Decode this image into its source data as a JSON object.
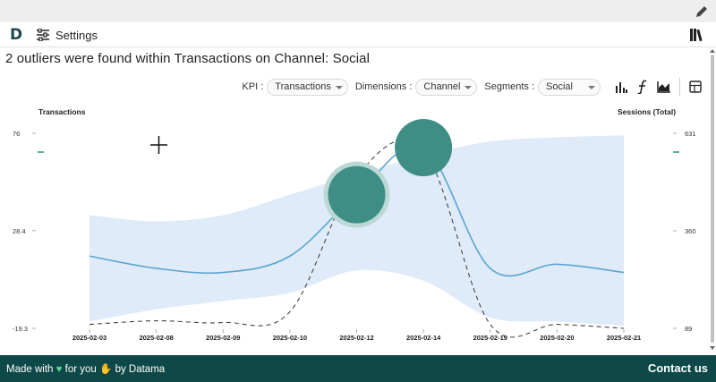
{
  "nav": {
    "settings_label": "Settings"
  },
  "headline": "2 outliers were found within Transactions on Channel: Social",
  "controls": {
    "kpi_label": "KPI :",
    "kpi_value": "Transactions",
    "dimensions_label": "Dimensions :",
    "dimensions_value": "Channel",
    "segments_label": "Segments :",
    "segments_value": "Social"
  },
  "icons": [
    "pencil-icon",
    "logo",
    "sliders-icon",
    "books-icon",
    "bar-chart-icon",
    "function-icon",
    "area-chart-icon",
    "table-icon"
  ],
  "footer": {
    "made_prefix": "Made with",
    "made_middle": "for you",
    "made_suffix": "by Datama",
    "contact": "Contact us"
  },
  "colors": {
    "accent": "#0f4848",
    "outlier": "#3e8e86",
    "line": "#5aa5d2",
    "band": "#dfebf8"
  },
  "chart_data": {
    "type": "line",
    "x": [
      "2025-02-03",
      "2025-02-08",
      "2025-02-09",
      "2025-02-10",
      "2025-02-12",
      "2025-02-14",
      "2025-02-19",
      "2025-02-20",
      "2025-02-21"
    ],
    "y_left_label": "Transactions",
    "y_right_label": "Sessions (Total)",
    "y_left_ticks": [
      "76",
      "28.4",
      "-19.3"
    ],
    "y_right_ticks": [
      "631",
      "360",
      "89"
    ],
    "ylim_left": [
      -19.3,
      76
    ],
    "ylim_right": [
      89,
      631
    ],
    "series": [
      {
        "name": "Transactions",
        "style": "solid",
        "values": [
          16,
          10,
          8,
          16,
          46,
          69,
          10,
          12,
          8
        ]
      },
      {
        "name": "Sessions (Total)",
        "style": "dashed",
        "values": [
          100,
          110,
          105,
          135,
          510,
          585,
          100,
          100,
          89
        ]
      }
    ],
    "band_upper": [
      36,
      33,
      36,
      46,
      56,
      65,
      72,
      74,
      75
    ],
    "band_lower": [
      -16,
      -10,
      -6,
      -2,
      9,
      4,
      -14,
      -16,
      -18
    ],
    "outliers": [
      {
        "x": "2025-02-12",
        "value": 46
      },
      {
        "x": "2025-02-14",
        "value": 69
      }
    ]
  }
}
